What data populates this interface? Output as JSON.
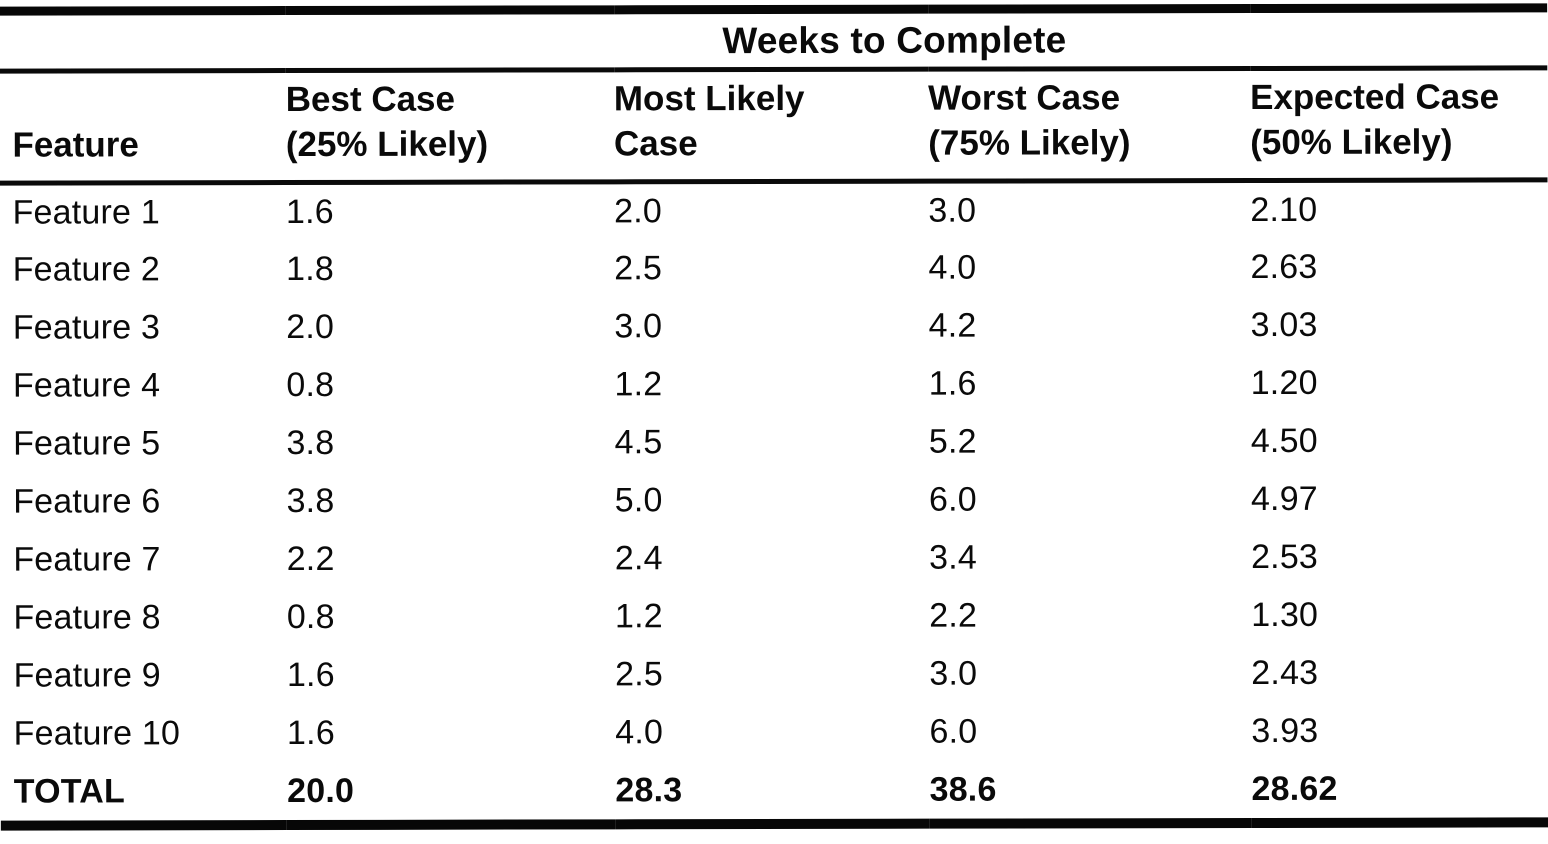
{
  "page": {
    "background_color": "#ffffff",
    "text_color": "#0a0a0a",
    "rule_color": "#070707"
  },
  "table": {
    "spanner_label": "Weeks to Complete",
    "header": {
      "feature": "Feature",
      "best_case": {
        "line1": "Best Case",
        "line2": "(25% Likely)"
      },
      "most_likely_case": {
        "line1": "Most Likely",
        "line2": "Case"
      },
      "worst_case": {
        "line1": "Worst Case",
        "line2": "(75% Likely)"
      },
      "expected_case": {
        "line1": "Expected Case",
        "line2": "(50% Likely)"
      }
    },
    "rows": [
      {
        "feature": "Feature 1",
        "best_case": "1.6",
        "most_likely_case": "2.0",
        "worst_case": "3.0",
        "expected_case": "2.10"
      },
      {
        "feature": "Feature 2",
        "best_case": "1.8",
        "most_likely_case": "2.5",
        "worst_case": "4.0",
        "expected_case": "2.63"
      },
      {
        "feature": "Feature 3",
        "best_case": "2.0",
        "most_likely_case": "3.0",
        "worst_case": "4.2",
        "expected_case": "3.03"
      },
      {
        "feature": "Feature 4",
        "best_case": "0.8",
        "most_likely_case": "1.2",
        "worst_case": "1.6",
        "expected_case": "1.20"
      },
      {
        "feature": "Feature 5",
        "best_case": "3.8",
        "most_likely_case": "4.5",
        "worst_case": "5.2",
        "expected_case": "4.50"
      },
      {
        "feature": "Feature 6",
        "best_case": "3.8",
        "most_likely_case": "5.0",
        "worst_case": "6.0",
        "expected_case": "4.97"
      },
      {
        "feature": "Feature 7",
        "best_case": "2.2",
        "most_likely_case": "2.4",
        "worst_case": "3.4",
        "expected_case": "2.53"
      },
      {
        "feature": "Feature 8",
        "best_case": "0.8",
        "most_likely_case": "1.2",
        "worst_case": "2.2",
        "expected_case": "1.30"
      },
      {
        "feature": "Feature 9",
        "best_case": "1.6",
        "most_likely_case": "2.5",
        "worst_case": "3.0",
        "expected_case": "2.43"
      },
      {
        "feature": "Feature 10",
        "best_case": "1.6",
        "most_likely_case": "4.0",
        "worst_case": "6.0",
        "expected_case": "3.93"
      }
    ],
    "total_row": {
      "feature": "TOTAL",
      "best_case": "20.0",
      "most_likely_case": "28.3",
      "worst_case": "38.6",
      "expected_case": "28.62"
    }
  }
}
